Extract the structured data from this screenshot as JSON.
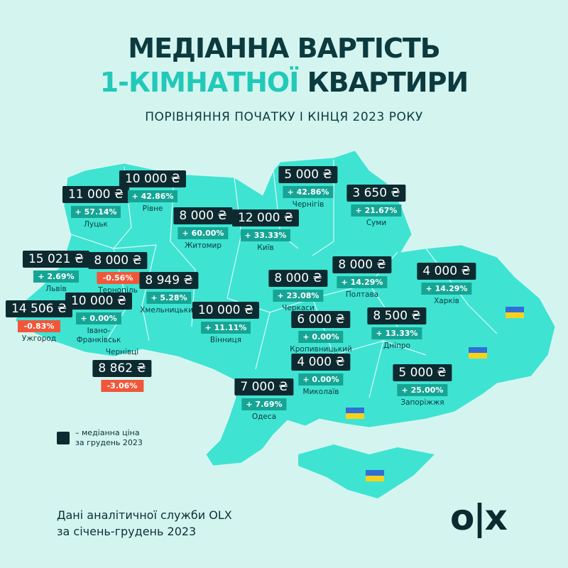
{
  "title": {
    "line1": "МЕДІАННА ВАРТІСТЬ",
    "line2_accent": "1-КІМНАТНОЇ",
    "line2_rest": "КВАРТИРИ",
    "subtitle": "ПОРІВНЯННЯ ПОЧАТКУ І КІНЦЯ 2023 РОКУ"
  },
  "colors": {
    "background": "#d4f5ef",
    "map": "#3fe3d2",
    "price_box": "#0c2a30",
    "positive": "#16a595",
    "negative": "#f0573a",
    "accent": "#22c9b8"
  },
  "regions": [
    {
      "city": "Луцьк",
      "price": "11 000 ₴",
      "change": "+ 57.14%",
      "negative": false
    },
    {
      "city": "Рівне",
      "price": "10 000 ₴",
      "change": "+ 42.86%",
      "negative": false
    },
    {
      "city": "Житомир",
      "price": "8 000 ₴",
      "change": "+ 60.00%",
      "negative": false
    },
    {
      "city": "Київ",
      "price": "12 000 ₴",
      "change": "+ 33.33%",
      "negative": false
    },
    {
      "city": "Чернігів",
      "price": "5 000 ₴",
      "change": "+ 42.86%",
      "negative": false
    },
    {
      "city": "Суми",
      "price": "3 650 ₴",
      "change": "+ 21.67%",
      "negative": false
    },
    {
      "city": "Львів",
      "price": "15 021 ₴",
      "change": "+ 2.69%",
      "negative": false
    },
    {
      "city": "Тернопіль",
      "price": "8 000 ₴",
      "change": "-0.56%",
      "negative": true
    },
    {
      "city": "Хмельницький",
      "price": "8 949 ₴",
      "change": "+ 5.28%",
      "negative": false
    },
    {
      "city": "Івано-\nФранківськ",
      "price": "10 000 ₴",
      "change": "+ 0.00%",
      "negative": false
    },
    {
      "city": "Ужгород",
      "price": "14 506 ₴",
      "change": "-0.83%",
      "negative": true
    },
    {
      "city": "Чернівці",
      "price": "8 862 ₴",
      "change": "-3.06%",
      "negative": true
    },
    {
      "city": "Вінниця",
      "price": "10 000 ₴",
      "change": "+ 11.11%",
      "negative": false
    },
    {
      "city": "Черкаси",
      "price": "8 000 ₴",
      "change": "+ 23.08%",
      "negative": false
    },
    {
      "city": "Полтава",
      "price": "8 000 ₴",
      "change": "+ 14.29%",
      "negative": false
    },
    {
      "city": "Харків",
      "price": "4 000 ₴",
      "change": "+ 14.29%",
      "negative": false
    },
    {
      "city": "Кропивницький",
      "price": "6 000 ₴",
      "change": "+ 0.00%",
      "negative": false
    },
    {
      "city": "Дніпро",
      "price": "8 500 ₴",
      "change": "+ 13.33%",
      "negative": false
    },
    {
      "city": "Миколаїв",
      "price": "4 000 ₴",
      "change": "+ 0.00%",
      "negative": false
    },
    {
      "city": "Запоріжжя",
      "price": "5 000 ₴",
      "change": "+ 25.00%",
      "negative": false
    },
    {
      "city": "Одеса",
      "price": "7 000 ₴",
      "change": "+ 7.69%",
      "negative": false
    }
  ],
  "legend": {
    "text": "– медіанна ціна\nза грудень 2023"
  },
  "footer": {
    "source": "Дані аналітичної служби OLX\nза січень-грудень 2023"
  },
  "logo": {
    "text": "OLX"
  }
}
